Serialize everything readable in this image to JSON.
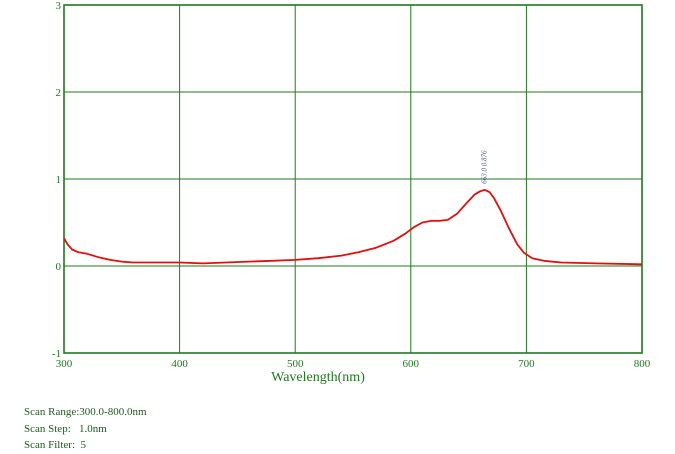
{
  "chart_data": {
    "type": "line",
    "title": "",
    "xlabel": "Wavelength(nm)",
    "ylabel": "",
    "xlim": [
      300,
      800
    ],
    "ylim": [
      -1,
      3
    ],
    "x_ticks": [
      300,
      400,
      500,
      600,
      700,
      800
    ],
    "y_ticks": [
      -1,
      0,
      1,
      2,
      3
    ],
    "grid": true,
    "colors": {
      "line": "#e01010",
      "grid": "#1e7a1e",
      "frame": "#1e7a1e",
      "peak_label": "#4a5a9a"
    },
    "series": [
      {
        "x": [
          300,
          303,
          307,
          312,
          320,
          330,
          340,
          350,
          360,
          380,
          400,
          420,
          440,
          460,
          480,
          500,
          520,
          540,
          555,
          570,
          585,
          595,
          603,
          610,
          618,
          625,
          632,
          640,
          648,
          655,
          660,
          664,
          668,
          672,
          678,
          685,
          692,
          698,
          705,
          715,
          730,
          760,
          800
        ],
        "y": [
          0.32,
          0.25,
          0.19,
          0.16,
          0.14,
          0.1,
          0.07,
          0.05,
          0.04,
          0.04,
          0.04,
          0.03,
          0.04,
          0.05,
          0.06,
          0.07,
          0.09,
          0.12,
          0.16,
          0.21,
          0.29,
          0.37,
          0.45,
          0.5,
          0.52,
          0.52,
          0.53,
          0.6,
          0.72,
          0.82,
          0.86,
          0.875,
          0.85,
          0.78,
          0.63,
          0.43,
          0.25,
          0.15,
          0.09,
          0.06,
          0.04,
          0.03,
          0.02
        ]
      }
    ],
    "annotations": [
      {
        "text": "663.0 0.876",
        "x": 663,
        "y": 0.876
      }
    ]
  },
  "scan_info": {
    "range_text": "Scan Range:300.0-800.0nm",
    "step_text": "Scan Step:   1.0nm",
    "filter_text": "Scan Filter:  5"
  }
}
